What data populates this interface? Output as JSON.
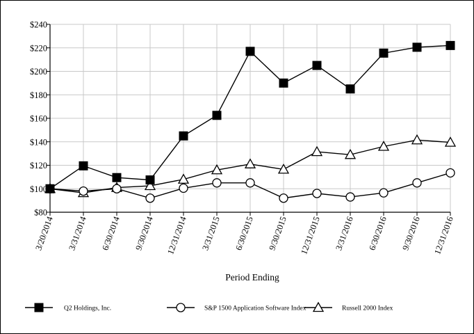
{
  "chart_data": {
    "type": "line",
    "title": "",
    "xlabel": "Period Ending",
    "ylabel": "",
    "ylim": [
      80,
      240
    ],
    "y_ticks": [
      "$80",
      "$100",
      "$120",
      "$140",
      "$160",
      "$180",
      "$200",
      "$220",
      "$240"
    ],
    "y_tick_values": [
      80,
      100,
      120,
      140,
      160,
      180,
      200,
      220,
      240
    ],
    "categories": [
      "3/20/2014",
      "3/31/2014",
      "6/30/2014",
      "9/30/2014",
      "12/31/2014",
      "3/31/2015",
      "6/30/2015",
      "9/30/2015",
      "12/31/2015",
      "3/31/2016",
      "6/30/2016",
      "9/30/2016",
      "12/31/2016"
    ],
    "grid": true,
    "legend_position": "bottom",
    "series": [
      {
        "name": "Q2 Holdings, Inc.",
        "marker": "filled-square",
        "values": [
          100,
          119.5,
          109.5,
          107.5,
          145,
          162.5,
          217,
          190,
          205,
          185,
          215.5,
          220.5,
          222
        ]
      },
      {
        "name": "S&P 1500 Application Software Index",
        "marker": "open-circle",
        "values": [
          100,
          98,
          100,
          92,
          100.5,
          105,
          105,
          92,
          96,
          93,
          96.5,
          105,
          113.5
        ]
      },
      {
        "name": "Russell 2000 Index",
        "marker": "open-triangle",
        "values": [
          100,
          96.5,
          101,
          102.5,
          108,
          116,
          121,
          116.5,
          131.5,
          129,
          136,
          141.5,
          139.5
        ]
      }
    ]
  }
}
